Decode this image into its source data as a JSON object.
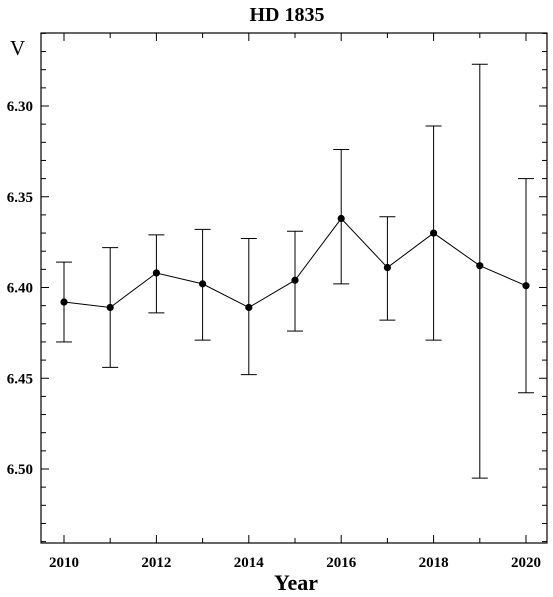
{
  "chart_data": {
    "type": "line",
    "title": "HD 1835",
    "xlabel": "Year",
    "ylabel": "V",
    "y_inverted": true,
    "xlim": [
      2009.5,
      2020.5
    ],
    "ylim": [
      6.5,
      6.25
    ],
    "xticks": [
      2010,
      2012,
      2014,
      2016,
      2018,
      2020
    ],
    "xtick_labels": [
      "2010",
      "2012",
      "2014",
      "2016",
      "2018",
      "2020"
    ],
    "yticks": [
      6.3,
      6.35,
      6.4,
      6.45,
      6.5
    ],
    "ytick_labels": [
      "6.30",
      "6.35",
      "6.40",
      "6.45",
      "6.50"
    ],
    "grid": false,
    "series": [
      {
        "x": [
          2010,
          2011,
          2012,
          2013,
          2014,
          2015,
          2016,
          2017,
          2018,
          2019,
          2020
        ],
        "values": [
          6.408,
          6.411,
          6.392,
          6.398,
          6.411,
          6.396,
          6.362,
          6.389,
          6.37,
          6.388,
          6.399
        ],
        "err_upper": [
          6.386,
          6.378,
          6.371,
          6.368,
          6.373,
          6.369,
          6.324,
          6.361,
          6.311,
          6.277,
          6.34
        ],
        "err_lower": [
          6.43,
          6.444,
          6.414,
          6.429,
          6.448,
          6.424,
          6.398,
          6.418,
          6.429,
          6.505,
          6.458
        ]
      }
    ]
  }
}
